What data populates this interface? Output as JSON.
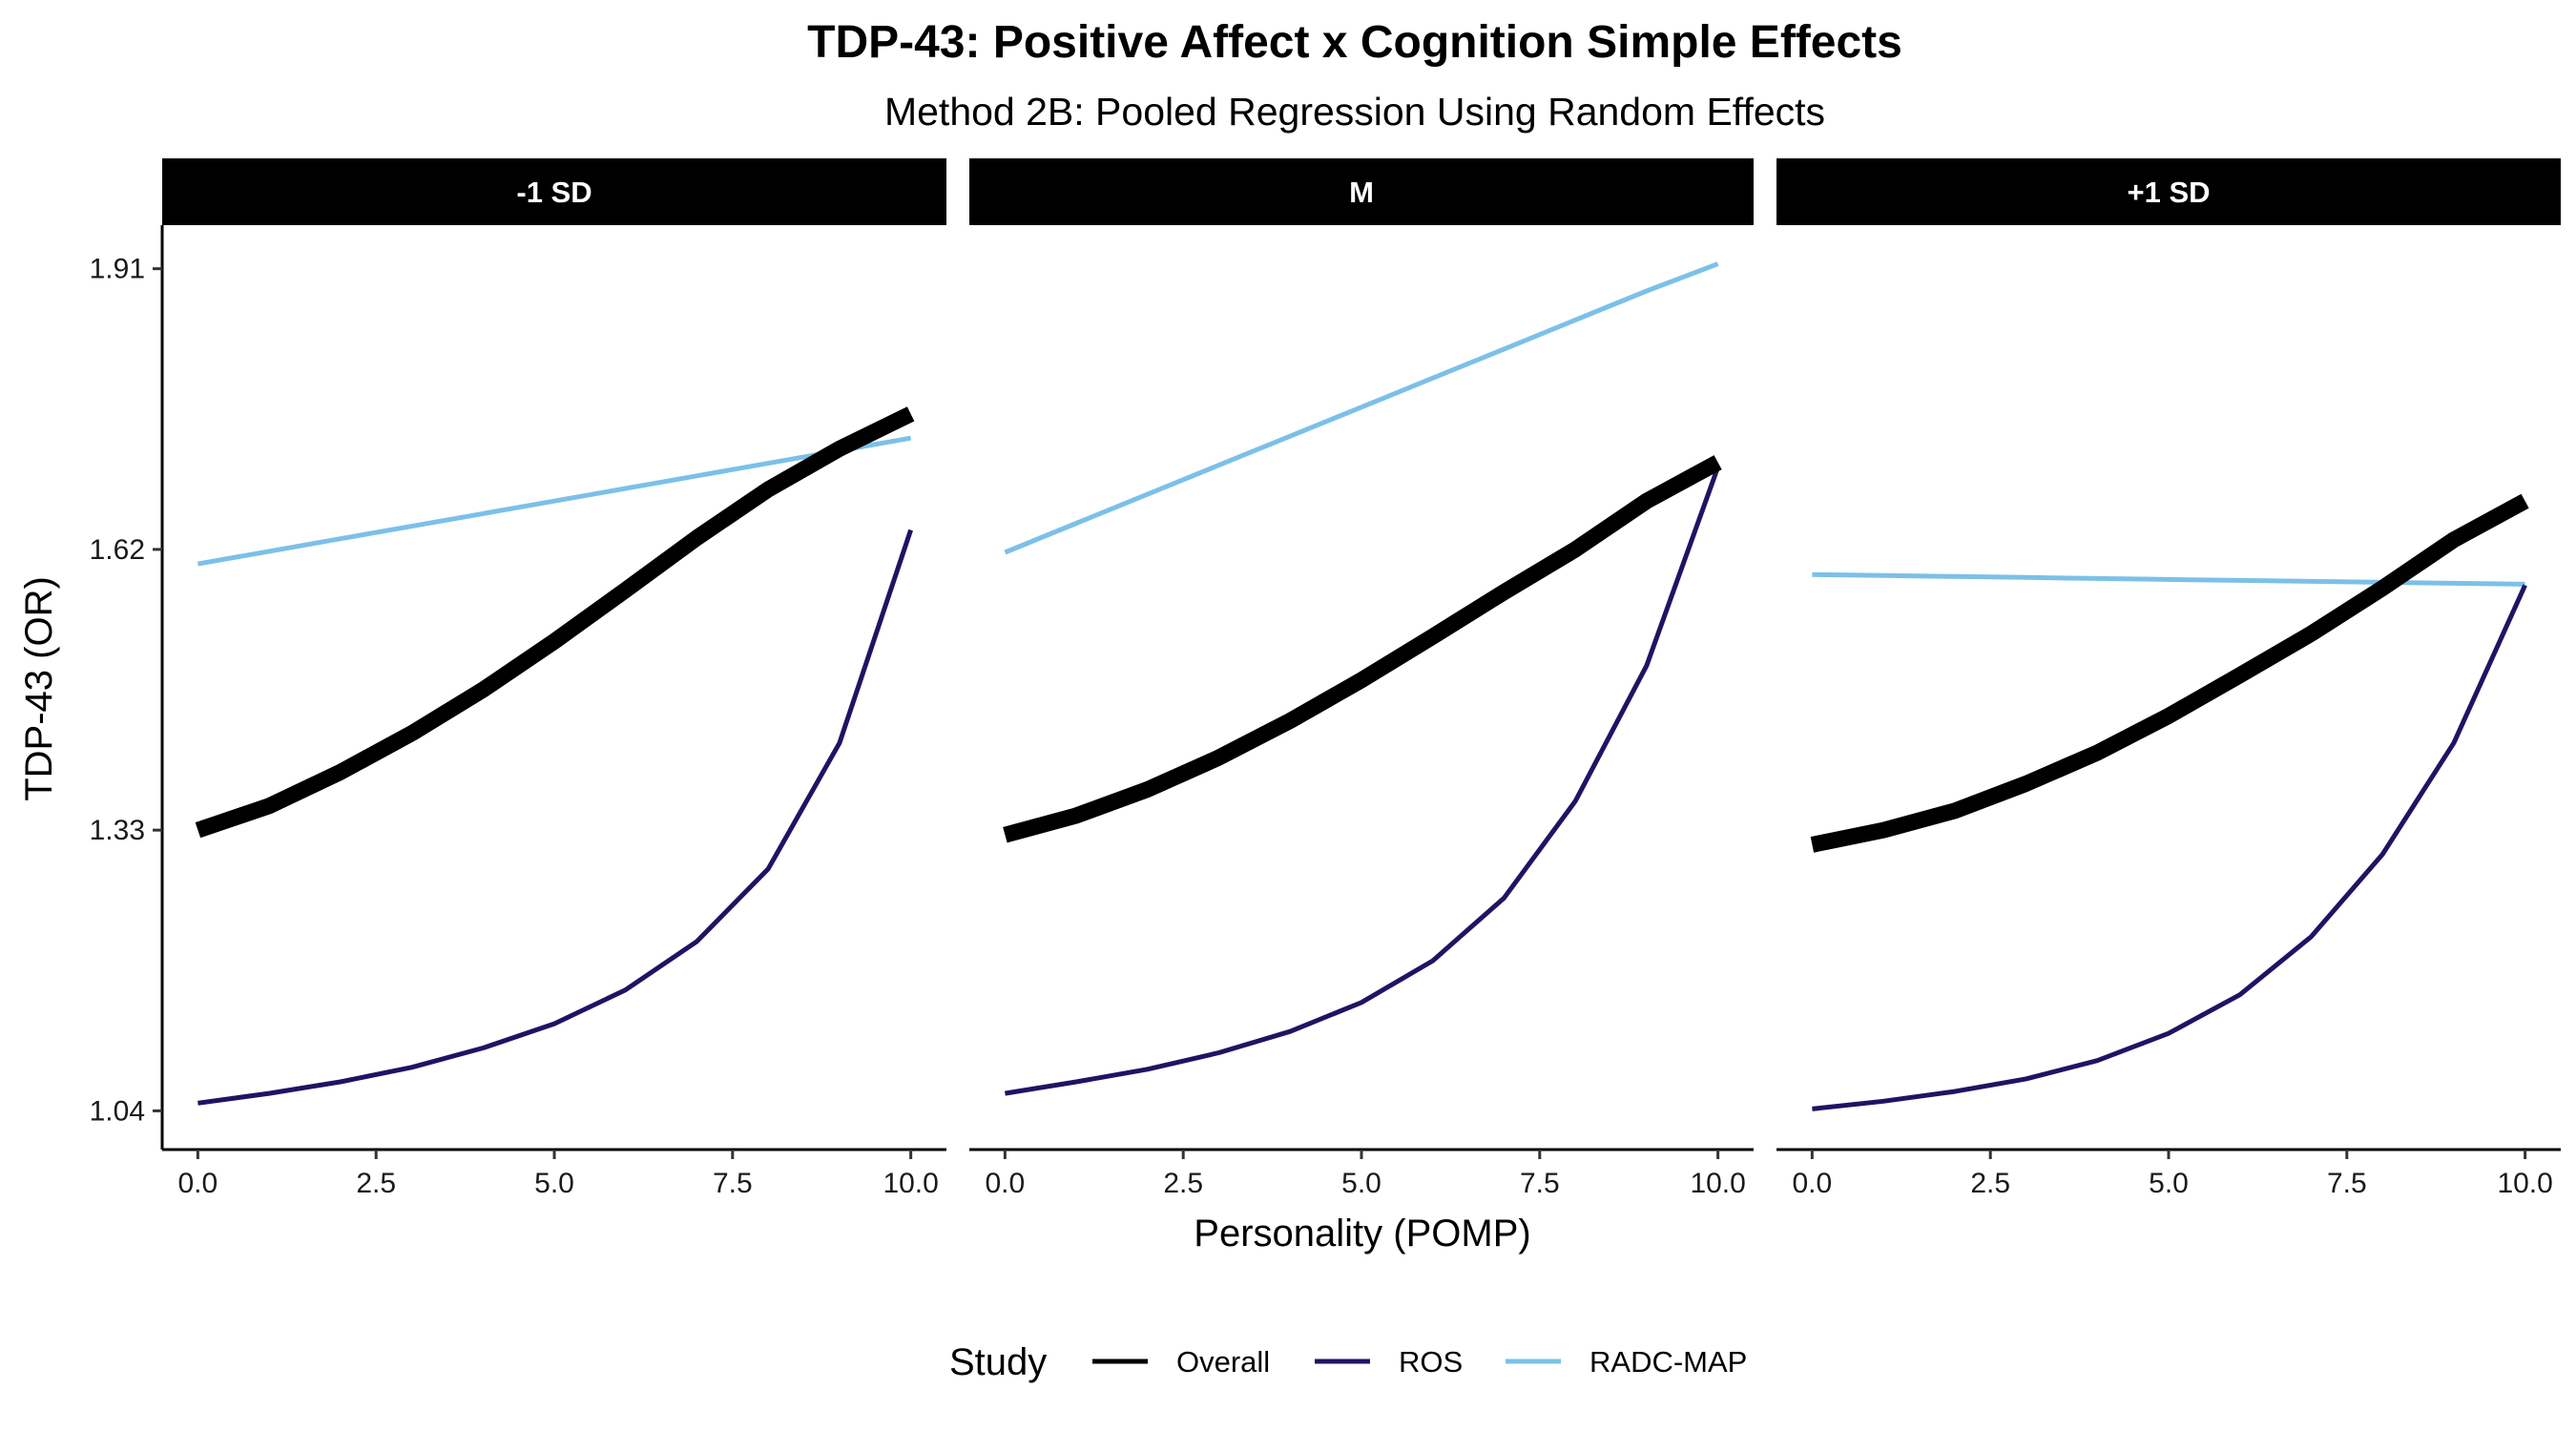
{
  "chart_data": {
    "type": "line",
    "title": "TDP-43: Positive Affect x Cognition Simple Effects",
    "subtitle": "Method 2B: Pooled Regression Using Random Effects",
    "xlabel": "Personality (POMP)",
    "ylabel": "TDP-43 (OR)",
    "xlim": [
      -0.5,
      10.5
    ],
    "ylim": [
      1.0,
      1.955
    ],
    "x_ticks": [
      0,
      2.5,
      5,
      7.5,
      10
    ],
    "x_tick_labels": [
      "0.0",
      "2.5",
      "5.0",
      "7.5",
      "10.0"
    ],
    "y_ticks": [
      1.04,
      1.33,
      1.62,
      1.91
    ],
    "y_tick_labels": [
      "1.04",
      "1.33",
      "1.62",
      "1.91"
    ],
    "grid": false,
    "legend": {
      "title": "Study",
      "position": "bottom",
      "entries": [
        {
          "name": "Overall",
          "color": "#000000"
        },
        {
          "name": "ROS",
          "color": "#1f1464"
        },
        {
          "name": "RADC-MAP",
          "color": "#7cc0e8"
        }
      ]
    },
    "x": [
      0,
      1,
      2,
      3,
      4,
      5,
      6,
      7,
      8,
      9,
      10
    ],
    "panels": [
      {
        "label": "-1 SD",
        "series": [
          {
            "name": "Overall",
            "values": [
              1.33,
              1.355,
              1.39,
              1.43,
              1.475,
              1.525,
              1.578,
              1.632,
              1.682,
              1.724,
              1.76
            ]
          },
          {
            "name": "ROS",
            "values": [
              1.048,
              1.058,
              1.07,
              1.085,
              1.105,
              1.13,
              1.165,
              1.215,
              1.29,
              1.42,
              1.64
            ]
          },
          {
            "name": "RADC-MAP",
            "values": [
              1.605,
              1.618,
              1.631,
              1.644,
              1.657,
              1.67,
              1.683,
              1.696,
              1.709,
              1.722,
              1.735
            ]
          }
        ]
      },
      {
        "label": "M",
        "series": [
          {
            "name": "Overall",
            "values": [
              1.325,
              1.345,
              1.372,
              1.405,
              1.443,
              1.485,
              1.53,
              1.576,
              1.62,
              1.67,
              1.71
            ]
          },
          {
            "name": "ROS",
            "values": [
              1.058,
              1.07,
              1.083,
              1.1,
              1.122,
              1.152,
              1.195,
              1.26,
              1.36,
              1.5,
              1.705
            ]
          },
          {
            "name": "RADC-MAP",
            "values": [
              1.617,
              1.647,
              1.677,
              1.707,
              1.737,
              1.767,
              1.797,
              1.827,
              1.857,
              1.887,
              1.915
            ]
          }
        ]
      },
      {
        "label": "+1 SD",
        "series": [
          {
            "name": "Overall",
            "values": [
              1.315,
              1.33,
              1.35,
              1.378,
              1.41,
              1.448,
              1.49,
              1.533,
              1.58,
              1.63,
              1.67
            ]
          },
          {
            "name": "ROS",
            "values": [
              1.042,
              1.05,
              1.06,
              1.073,
              1.092,
              1.12,
              1.16,
              1.22,
              1.305,
              1.42,
              1.583
            ]
          },
          {
            "name": "RADC-MAP",
            "values": [
              1.594,
              1.593,
              1.592,
              1.591,
              1.59,
              1.589,
              1.588,
              1.587,
              1.586,
              1.585,
              1.584
            ]
          }
        ]
      }
    ]
  }
}
